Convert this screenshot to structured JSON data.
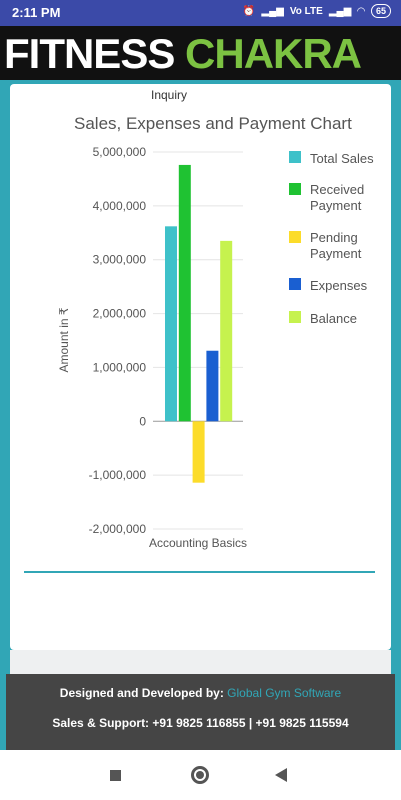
{
  "status": {
    "time": "2:11 PM",
    "battery": "65",
    "network_labels": "Vo LTE"
  },
  "brand": {
    "word1": "FITNESS",
    "word2": "CHAKRA"
  },
  "card": {
    "inquiry_label": "Inquiry",
    "chart_title": "Sales, Expenses and Payment Chart"
  },
  "chart_data": {
    "type": "bar",
    "title": "Sales, Expenses and Payment Chart",
    "xlabel": "",
    "ylabel": "Amount in ₹",
    "categories": [
      "Accounting Basics"
    ],
    "ylim": [
      -2000000,
      5000000
    ],
    "yticks": [
      "5,000,000",
      "4,000,000",
      "3,000,000",
      "2,000,000",
      "1,000,000",
      "0",
      "-1,000,000",
      "-2,000,000"
    ],
    "ytick_values": [
      5000000,
      4000000,
      3000000,
      2000000,
      1000000,
      0,
      -1000000,
      -2000000
    ],
    "grid": true,
    "legend_position": "right",
    "series": [
      {
        "name": "Total Sales",
        "values": [
          3620000
        ],
        "color": "#3ec1c9"
      },
      {
        "name": "Received Payment",
        "values": [
          4760000
        ],
        "color": "#1fc232"
      },
      {
        "name": "Pending Payment",
        "values": [
          -1140000
        ],
        "color": "#fcdc2a"
      },
      {
        "name": "Expenses",
        "values": [
          1310000
        ],
        "color": "#1a5fd1"
      },
      {
        "name": "Balance",
        "values": [
          3350000
        ],
        "color": "#c6f24e"
      }
    ]
  },
  "footer": {
    "designed_by_label": "Designed and Developed by:",
    "designed_by_link": "Global Gym Software",
    "support": "Sales & Support: +91 9825 116855 | +91 9825 115594"
  }
}
